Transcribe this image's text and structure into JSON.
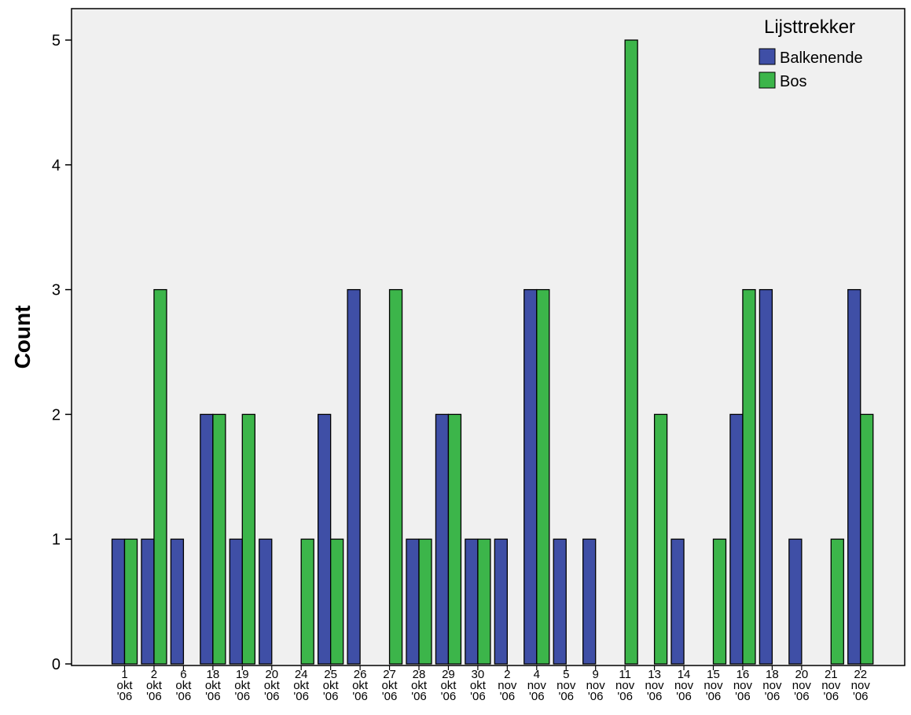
{
  "chart_data": {
    "type": "bar",
    "title": "",
    "xlabel": "",
    "ylabel": "Count",
    "ylim": [
      0,
      5.25
    ],
    "yticks": [
      "0",
      "1",
      "2",
      "3",
      "4",
      "5"
    ],
    "grid": false,
    "legend_position": "top-right",
    "legend_title": "Lijsttrekker",
    "categories": [
      [
        "1",
        "okt",
        "'06"
      ],
      [
        "2",
        "okt",
        "'06"
      ],
      [
        "6",
        "okt",
        "'06"
      ],
      [
        "18",
        "okt",
        "'06"
      ],
      [
        "19",
        "okt",
        "'06"
      ],
      [
        "20",
        "okt",
        "'06"
      ],
      [
        "24",
        "okt",
        "'06"
      ],
      [
        "25",
        "okt",
        "'06"
      ],
      [
        "26",
        "okt",
        "'06"
      ],
      [
        "27",
        "okt",
        "'06"
      ],
      [
        "28",
        "okt",
        "'06"
      ],
      [
        "29",
        "okt",
        "'06"
      ],
      [
        "30",
        "okt",
        "'06"
      ],
      [
        "2",
        "nov",
        "'06"
      ],
      [
        "4",
        "nov",
        "'06"
      ],
      [
        "5",
        "nov",
        "'06"
      ],
      [
        "9",
        "nov",
        "'06"
      ],
      [
        "11",
        "nov",
        "'06"
      ],
      [
        "13",
        "nov",
        "'06"
      ],
      [
        "14",
        "nov",
        "'06"
      ],
      [
        "15",
        "nov",
        "'06"
      ],
      [
        "16",
        "nov",
        "'06"
      ],
      [
        "18",
        "nov",
        "'06"
      ],
      [
        "20",
        "nov",
        "'06"
      ],
      [
        "21",
        "nov",
        "'06"
      ],
      [
        "22",
        "nov",
        "'06"
      ]
    ],
    "series": [
      {
        "name": "Balkenende",
        "color": "#3f4fa6",
        "values": [
          1,
          1,
          1,
          2,
          1,
          1,
          0,
          2,
          3,
          0,
          1,
          2,
          1,
          1,
          3,
          1,
          1,
          0,
          0,
          1,
          0,
          2,
          3,
          1,
          0,
          3
        ]
      },
      {
        "name": "Bos",
        "color": "#3cb54a",
        "values": [
          1,
          3,
          0,
          2,
          2,
          0,
          1,
          1,
          0,
          3,
          1,
          2,
          1,
          0,
          3,
          0,
          0,
          5,
          2,
          0,
          1,
          3,
          0,
          0,
          1,
          2
        ]
      }
    ],
    "plot_background": "#f0f0f0"
  }
}
